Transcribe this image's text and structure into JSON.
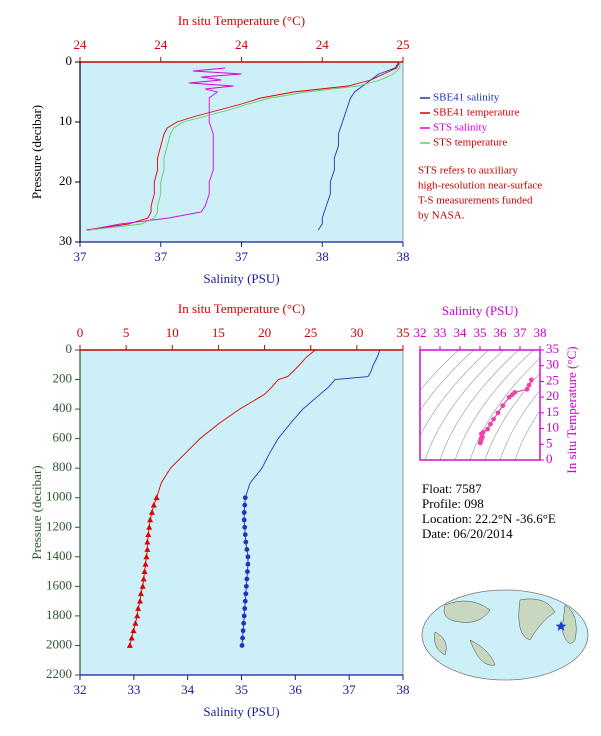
{
  "chart_data": [
    {
      "type": "profile",
      "xlabel": "Salinity (PSU)",
      "x2label": "In situ Temperature (°C)",
      "ylabel": "Pressure (decibar)",
      "xlim": [
        37.0,
        37.8
      ],
      "xticks": [
        {
          "value": 37.0,
          "label": "37"
        },
        {
          "value": 37.2,
          "label": "37"
        },
        {
          "value": 37.4,
          "label": "37"
        },
        {
          "value": 37.6,
          "label": "38"
        },
        {
          "value": 37.8,
          "label": "38"
        }
      ],
      "x2lim": [
        24.0,
        25.0
      ],
      "x2ticks": [
        {
          "value": 24.0,
          "label": "24"
        },
        {
          "value": 24.25,
          "label": "24"
        },
        {
          "value": 24.5,
          "label": "24"
        },
        {
          "value": 24.75,
          "label": "24"
        },
        {
          "value": 25.0,
          "label": "25"
        }
      ],
      "ylim": [
        0,
        30
      ],
      "yticks": [
        0,
        10,
        20,
        30
      ],
      "invert_y": true,
      "background": "#cdeff8",
      "x_color": "#1a1a9c",
      "x2_color": "#cc0000",
      "y_color": "#000000",
      "legend": "right",
      "series": [
        {
          "name": "SBE41 salinity",
          "color": "#2233bb",
          "pressure": [
            0,
            1,
            2,
            3,
            4,
            5,
            6,
            8,
            10,
            12,
            14,
            16,
            18,
            20,
            22,
            24,
            26,
            27,
            28
          ],
          "values": [
            37.79,
            37.78,
            37.74,
            37.72,
            37.7,
            37.68,
            37.67,
            37.66,
            37.65,
            37.64,
            37.64,
            37.63,
            37.63,
            37.62,
            37.62,
            37.61,
            37.6,
            37.6,
            37.59
          ]
        },
        {
          "name": "SBE41 temperature",
          "color": "#e00000",
          "axis": "x2",
          "pressure": [
            0,
            1,
            2,
            3,
            4,
            5,
            6,
            7,
            8,
            9,
            10,
            11,
            12,
            14,
            16,
            18,
            20,
            22,
            24,
            25,
            26,
            27,
            28
          ],
          "values": [
            24.99,
            24.98,
            24.94,
            24.9,
            24.83,
            24.66,
            24.56,
            24.5,
            24.43,
            24.36,
            24.3,
            24.27,
            24.26,
            24.25,
            24.24,
            24.24,
            24.23,
            24.23,
            24.22,
            24.22,
            24.21,
            24.15,
            24.02
          ]
        },
        {
          "name": "STS salinity",
          "color": "#e000e0",
          "pressure": [
            1,
            1.5,
            2,
            2.5,
            3,
            3.5,
            4,
            4.5,
            5,
            6,
            8,
            10,
            12,
            15,
            18,
            20,
            22,
            24,
            25,
            26,
            27,
            28
          ],
          "values": [
            37.36,
            37.28,
            37.4,
            37.3,
            37.35,
            37.27,
            37.38,
            37.31,
            37.34,
            37.32,
            37.32,
            37.32,
            37.33,
            37.33,
            37.33,
            37.32,
            37.32,
            37.31,
            37.3,
            37.22,
            37.1,
            37.02
          ]
        },
        {
          "name": "STS temperature",
          "color": "#66cc66",
          "axis": "x2",
          "pressure": [
            0,
            1,
            2,
            3,
            4,
            5,
            6,
            7,
            8,
            9,
            10,
            11,
            12,
            14,
            16,
            18,
            20,
            22,
            24,
            25,
            26,
            27,
            28
          ],
          "values": [
            24.99,
            24.99,
            24.97,
            24.93,
            24.86,
            24.7,
            24.59,
            24.52,
            24.46,
            24.39,
            24.32,
            24.29,
            24.28,
            24.27,
            24.26,
            24.26,
            24.25,
            24.25,
            24.24,
            24.24,
            24.23,
            24.19,
            24.03
          ]
        }
      ],
      "annotation": [
        "STS refers to auxiliary",
        "high-resolution near-surface",
        "T-S measurements funded",
        "by NASA."
      ]
    },
    {
      "type": "profile",
      "xlabel": "Salinity (PSU)",
      "x2label": "In situ Temperature (°C)",
      "ylabel": "Pressure (decibar)",
      "xlim": [
        32,
        38
      ],
      "xticks": [
        32,
        33,
        34,
        35,
        36,
        37,
        38
      ],
      "x2lim": [
        0,
        35
      ],
      "x2ticks": [
        0,
        5,
        10,
        15,
        20,
        25,
        30,
        35
      ],
      "ylim": [
        0,
        2200
      ],
      "yticks": [
        0,
        200,
        400,
        600,
        800,
        1000,
        1200,
        1400,
        1600,
        1800,
        2000,
        2200
      ],
      "invert_y": true,
      "background": "#cdeff8",
      "x_color": "#1a1a9c",
      "x2_color": "#cc0000",
      "y_color": "#335533",
      "series": [
        {
          "color": "#e00000",
          "axis": "x2",
          "marker": null,
          "pressure": [
            0,
            50,
            100,
            150,
            180,
            200,
            250,
            300,
            400,
            500,
            600,
            700,
            800,
            900,
            1000
          ],
          "values": [
            25.5,
            24.5,
            23.8,
            23.0,
            22.5,
            21.5,
            20.8,
            20.0,
            17.3,
            15.0,
            13.0,
            11.4,
            9.8,
            8.8,
            8.3
          ]
        },
        {
          "color": "#e00000",
          "axis": "x2",
          "marker": "triangle",
          "pressure": [
            1000,
            1050,
            1100,
            1150,
            1200,
            1250,
            1300,
            1350,
            1400,
            1450,
            1500,
            1550,
            1600,
            1650,
            1700,
            1750,
            1800,
            1850,
            1900,
            1950,
            2000
          ],
          "values": [
            8.3,
            8.0,
            7.8,
            7.6,
            7.5,
            7.4,
            7.3,
            7.3,
            7.2,
            7.1,
            7.0,
            6.9,
            6.8,
            6.6,
            6.5,
            6.3,
            6.2,
            6.0,
            5.8,
            5.6,
            5.4
          ]
        },
        {
          "color": "#2233bb",
          "marker": null,
          "pressure": [
            0,
            50,
            100,
            150,
            180,
            200,
            250,
            300,
            400,
            500,
            600,
            700,
            800,
            900,
            1000
          ],
          "values": [
            37.57,
            37.52,
            37.45,
            37.4,
            37.35,
            36.74,
            36.62,
            36.46,
            36.14,
            35.9,
            35.68,
            35.52,
            35.38,
            35.16,
            35.07
          ]
        },
        {
          "color": "#2233bb",
          "marker": "circle",
          "pressure": [
            1000,
            1050,
            1100,
            1150,
            1200,
            1250,
            1300,
            1350,
            1400,
            1450,
            1500,
            1550,
            1600,
            1650,
            1700,
            1750,
            1800,
            1850,
            1900,
            1950,
            2000
          ],
          "values": [
            35.07,
            35.06,
            35.05,
            35.05,
            35.06,
            35.07,
            35.08,
            35.1,
            35.12,
            35.12,
            35.11,
            35.1,
            35.09,
            35.08,
            35.07,
            35.06,
            35.05,
            35.04,
            35.03,
            35.02,
            35.01
          ]
        }
      ]
    },
    {
      "type": "ts",
      "xlabel": "Salinity (PSU)",
      "ylabel": "In situ Temperature (°C)",
      "xlim": [
        32,
        38
      ],
      "xticks": [
        32,
        33,
        34,
        35,
        36,
        37,
        38
      ],
      "ylim": [
        0,
        35
      ],
      "yticks": [
        0,
        5,
        10,
        15,
        20,
        25,
        30,
        35
      ],
      "axis_color": "#cc00cc",
      "background": "#cdeff8",
      "series": [
        {
          "color": "#ee44aa",
          "marker": "circle",
          "x": [
            35.01,
            35.03,
            35.05,
            35.07,
            35.1,
            35.12,
            35.07,
            35.16,
            35.38,
            35.52,
            35.68,
            35.9,
            36.14,
            36.46,
            36.62,
            36.74,
            37.35,
            37.45,
            37.57
          ],
          "values": [
            5.4,
            5.8,
            6.2,
            6.8,
            7.2,
            7.3,
            8.3,
            8.8,
            9.8,
            11.4,
            13.0,
            15.0,
            17.3,
            20.0,
            20.8,
            21.5,
            22.5,
            23.8,
            25.5
          ]
        }
      ]
    }
  ],
  "float_info": [
    "Float: 7587",
    "Profile: 098",
    "Location: 22.2°N -36.6°E",
    "Date: 06/20/2014"
  ]
}
